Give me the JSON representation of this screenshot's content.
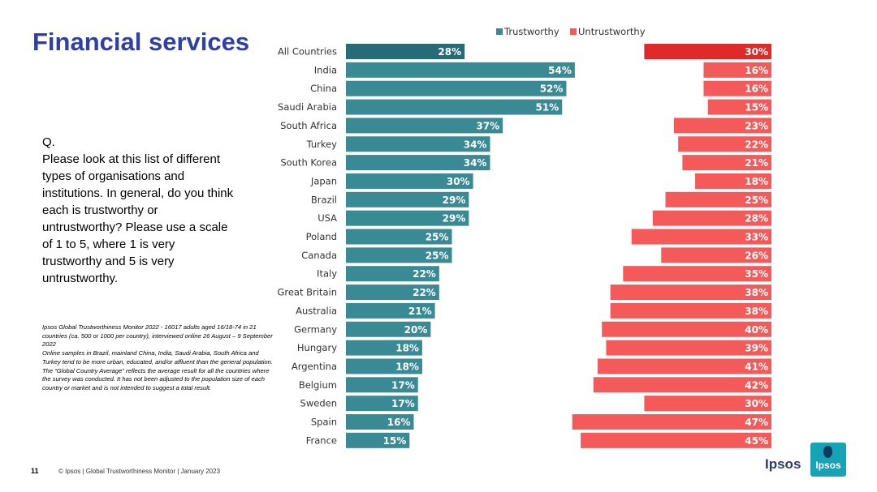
{
  "slide": {
    "title": "Financial services",
    "question_label": "Q.",
    "question_text": "Please look at this list of different types of organisations and institutions. In general, do you think each is trustworthy or untrustworthy? Please use a scale of 1 to 5, where 1 is very trustworthy and 5 is very untrustworthy.",
    "notes": [
      "Ipsos Global Trustworthiness Monitor 2022 - 16017 adults aged 16/18-74 in 21 countries (ca. 500 or 1000 per country), interviewed online 26 August – 9 September 2022",
      "Online samples in Brazil, mainland China, India, Saudi Arabia, South Africa and Turkey tend to be more urban, educated, and/or affluent than the general population.",
      "The “Global Country Average” reflects the average result for all the countries where the survey was conducted. It has not been adjusted to the population size of each country or market and is not intended to suggest a total result."
    ]
  },
  "footer": {
    "page_number": "11",
    "source": "© Ipsos | Global Trustworthiness Monitor | January 2023"
  },
  "brand": {
    "wordmark": "Ipsos",
    "logo_text": "Ipsos"
  },
  "colors": {
    "trust": "#3a8a96",
    "trust_highlight": "#276b77",
    "untrust": "#f55a5a",
    "untrust_highlight": "#e02a2a",
    "title": "#2f3fa3"
  },
  "chart_data": {
    "type": "bar",
    "orientation": "horizontal",
    "title": "",
    "xlabel": "",
    "ylabel": "",
    "xlim": [
      0,
      100
    ],
    "grid": false,
    "legend_position": "top-right",
    "value_suffix": "%",
    "highlight_category": "All Countries",
    "categories": [
      "All Countries",
      "India",
      "China",
      "Saudi Arabia",
      "South Africa",
      "Turkey",
      "South Korea",
      "Japan",
      "Brazil",
      "USA",
      "Poland",
      "Canada",
      "Italy",
      "Great Britain",
      "Australia",
      "Germany",
      "Hungary",
      "Argentina",
      "Belgium",
      "Sweden",
      "Spain",
      "France"
    ],
    "series": [
      {
        "name": "Trustworthy",
        "values": [
          28,
          54,
          52,
          51,
          37,
          34,
          34,
          30,
          29,
          29,
          25,
          25,
          22,
          22,
          21,
          20,
          18,
          18,
          17,
          17,
          16,
          15
        ]
      },
      {
        "name": "Untrustworthy",
        "values": [
          30,
          16,
          16,
          15,
          23,
          22,
          21,
          18,
          25,
          28,
          33,
          26,
          35,
          38,
          38,
          40,
          39,
          41,
          42,
          30,
          47,
          45
        ]
      }
    ]
  }
}
